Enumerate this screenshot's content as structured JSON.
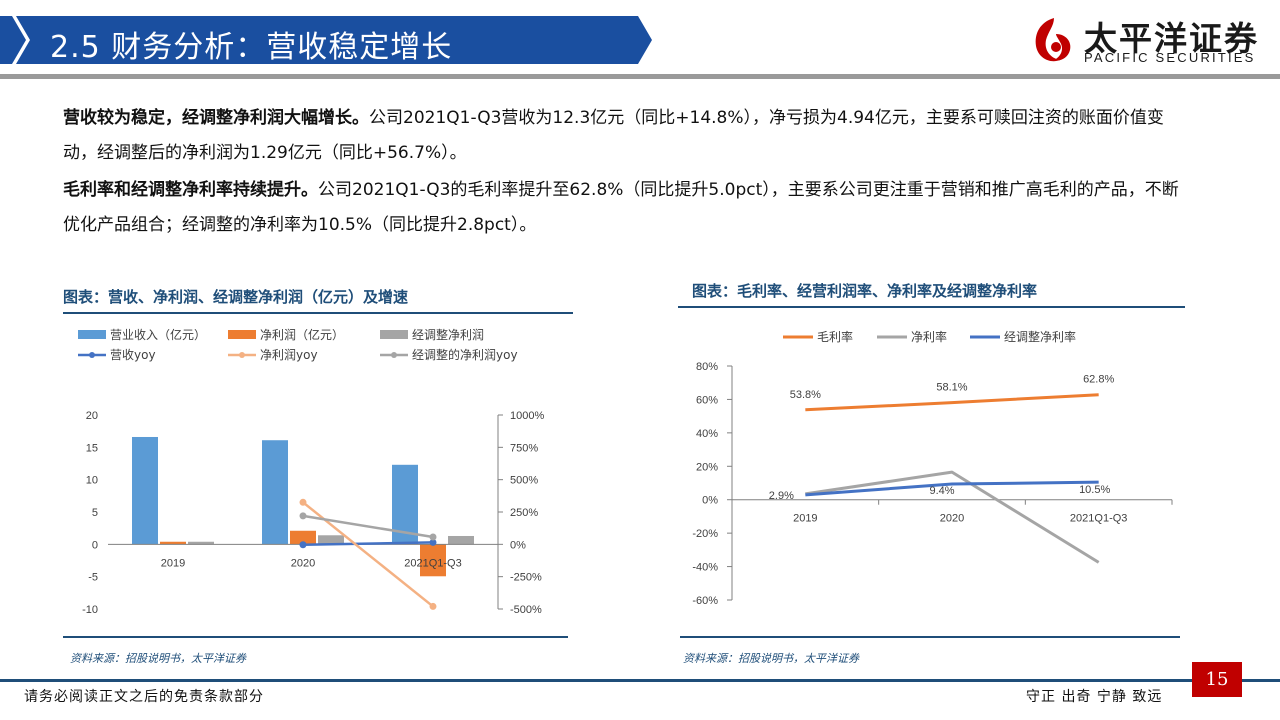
{
  "header": {
    "title": "2.5 财务分析：营收稳定增长",
    "logo_cn": "太平洋证券",
    "logo_en": "PACIFIC SECURITIES"
  },
  "paragraphs": [
    {
      "bold": "营收较为稳定，经调整净利润大幅增长。",
      "text": "公司2021Q1-Q3营收为12.3亿元（同比+14.8%），净亏损为4.94亿元，主要系可赎回注资的账面价值变动，经调整后的净利润为1.29亿元（同比+56.7%）。"
    },
    {
      "bold": "毛利率和经调整净利率持续提升。",
      "text": "公司2021Q1-Q3的毛利率提升至62.8%（同比提升5.0pct），主要系公司更注重于营销和推广高毛利的产品，不断优化产品组合；经调整的净利率为10.5%（同比提升2.8pct）。"
    }
  ],
  "footer": {
    "left": "请务必阅读正文之后的免责条款部分",
    "right": "守正 出奇 宁静 致远",
    "page": "15"
  },
  "chart_data": [
    {
      "type": "bar",
      "title": "图表：营收、净利润、经调整净利润（亿元）及增速",
      "source": "资料来源：招股说明书，太平洋证券",
      "categories": [
        "2019",
        "2020",
        "2021Q1-Q3"
      ],
      "series": [
        {
          "name": "营业收入（亿元）",
          "kind": "bar",
          "axis": "left",
          "color": "#5b9bd5",
          "values": [
            16.6,
            16.1,
            12.3
          ]
        },
        {
          "name": "净利润（亿元）",
          "kind": "bar",
          "axis": "left",
          "color": "#ed7d31",
          "values": [
            0.4,
            2.1,
            -4.94
          ]
        },
        {
          "name": "经调整净利润",
          "kind": "bar",
          "axis": "left",
          "color": "#a5a5a5",
          "values": [
            0.4,
            1.4,
            1.29
          ]
        },
        {
          "name": "营收yoy",
          "kind": "line",
          "axis": "right",
          "color": "#4472c4",
          "values": [
            null,
            -3,
            14.8
          ]
        },
        {
          "name": "净利润yoy",
          "kind": "line",
          "axis": "right",
          "color": "#f4b183",
          "values": [
            null,
            325,
            -480
          ]
        },
        {
          "name": "经调整的净利润yoy",
          "kind": "line",
          "axis": "right",
          "color": "#a5a5a5",
          "values": [
            null,
            220,
            56.7
          ]
        }
      ],
      "y_left": {
        "min": -10,
        "max": 20,
        "ticks": [
          "-10",
          "-5",
          "0",
          "5",
          "10",
          "15",
          "20"
        ]
      },
      "y_right": {
        "min": -500,
        "max": 1000,
        "ticks": [
          "-500%",
          "-250%",
          "0%",
          "250%",
          "500%",
          "750%",
          "1000%"
        ]
      },
      "legend_position": "top-left"
    },
    {
      "type": "line",
      "title": "图表：毛利率、经营利润率、净利率及经调整净利率",
      "source": "资料来源：招股说明书，太平洋证券",
      "categories": [
        "2019",
        "2020",
        "2021Q1-Q3"
      ],
      "series": [
        {
          "name": "毛利率",
          "color": "#ed7d31",
          "values": [
            53.8,
            58.1,
            62.8
          ],
          "labels": [
            "53.8%",
            "58.1%",
            "62.8%"
          ]
        },
        {
          "name": "净利率",
          "color": "#a5a5a5",
          "values": [
            3.5,
            16.5,
            -37.5
          ],
          "labels": []
        },
        {
          "name": "经调整净利率",
          "color": "#4472c4",
          "values": [
            2.9,
            9.4,
            10.5
          ],
          "labels": [
            "2.9%",
            "9.4%",
            "10.5%"
          ]
        }
      ],
      "ylim": [
        -60,
        80
      ],
      "y_ticks": [
        "80%",
        "60%",
        "40%",
        "20%",
        "0%",
        "-20%",
        "-40%",
        "-60%"
      ],
      "legend_position": "top"
    }
  ]
}
